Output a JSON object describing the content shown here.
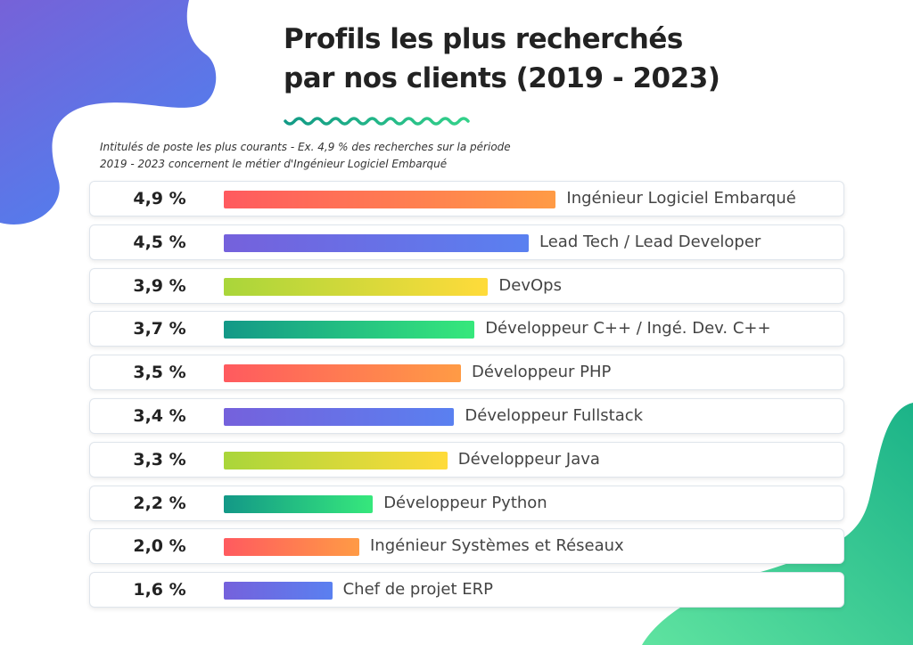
{
  "title_line1": "Profils les plus recherchés",
  "title_line2": "par nos clients (2019 - 2023)",
  "subtitle_line1": "Intitulés de poste les plus courants - Ex. 4,9 % des recherches sur la période",
  "subtitle_line2": "2019 - 2023 concernent le métier d'Ingénieur Logiciel Embarqué",
  "colors": {
    "gradients": [
      [
        "#ff5a5f",
        "#ff9b45"
      ],
      [
        "#7561dc",
        "#5a80f0"
      ],
      [
        "#a9d63a",
        "#ffdb3a"
      ],
      [
        "#139887",
        "#36e87c"
      ]
    ],
    "wave": "#1fae8a"
  },
  "chart_data": {
    "type": "bar",
    "orientation": "horizontal",
    "title": "Profils les plus recherchés par nos clients (2019 - 2023)",
    "unit": "%",
    "categories": [
      "Ingénieur Logiciel Embarqué",
      "Lead Tech / Lead Developer",
      "DevOps",
      "Développeur C++ / Ingé. Dev. C++",
      "Développeur PHP",
      "Développeur Fullstack",
      "Développeur Java",
      "Développeur Python",
      "Ingénieur Systèmes et Réseaux",
      "Chef de projet ERP"
    ],
    "values": [
      4.9,
      4.5,
      3.9,
      3.7,
      3.5,
      3.4,
      3.3,
      2.2,
      2.0,
      1.6
    ],
    "value_labels": [
      "4,9 %",
      "4,5 %",
      "3,9 %",
      "3,7 %",
      "3,5 %",
      "3,4 %",
      "3,3 %",
      "2,2 %",
      "2,0 %",
      "1,6 %"
    ]
  }
}
